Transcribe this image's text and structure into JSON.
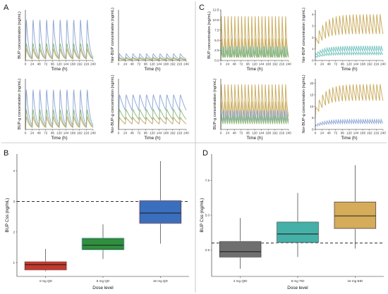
{
  "chart_data": [
    {
      "type": "line",
      "id": "A1",
      "panel_label": "A",
      "xlabel": "Time (h)",
      "ylabel": "BUP concentration (ng/mL)",
      "xticks": [
        "0",
        "24",
        "48",
        "72",
        "96",
        "120",
        "144",
        "168",
        "192",
        "216",
        "240"
      ],
      "xlim": [
        0,
        240
      ],
      "ylim": [
        0,
        10
      ],
      "period_h": 24,
      "series": [
        {
          "color": "#8ea6d4",
          "peak": 8.8,
          "trough": 0.6
        },
        {
          "color": "#8cb87a",
          "peak": 3.6,
          "trough": 0.4
        },
        {
          "color": "#b9a36a",
          "peak": 2.4,
          "trough": 0.3
        }
      ]
    },
    {
      "type": "line",
      "id": "A2",
      "xlabel": "Time (h)",
      "ylabel": "Nor-BUP concentration (ng/mL)",
      "xticks": [
        "0",
        "24",
        "48",
        "72",
        "96",
        "120",
        "144",
        "168",
        "192",
        "216",
        "240"
      ],
      "xlim": [
        0,
        240
      ],
      "ylim": [
        0,
        10
      ],
      "period_h": 24,
      "series": [
        {
          "color": "#8ea6d4",
          "peak": 1.4,
          "trough": 0.3
        },
        {
          "color": "#8cb87a",
          "peak": 0.7,
          "trough": 0.15
        },
        {
          "color": "#b9a36a",
          "peak": 0.4,
          "trough": 0.1
        }
      ]
    },
    {
      "type": "line",
      "id": "A3",
      "xlabel": "Time (h)",
      "ylabel": "BUP-g concentration (ng/mL)",
      "xticks": [
        "0",
        "24",
        "48",
        "72",
        "96",
        "120",
        "144",
        "168",
        "192",
        "216",
        "240"
      ],
      "xlim": [
        0,
        240
      ],
      "ylim": [
        0,
        10
      ],
      "period_h": 24,
      "series": [
        {
          "color": "#8ea6d4",
          "peak": 8.5,
          "trough": 0.8
        },
        {
          "color": "#8cb87a",
          "peak": 4.2,
          "trough": 0.5
        },
        {
          "color": "#b9a36a",
          "peak": 2.6,
          "trough": 0.4
        }
      ]
    },
    {
      "type": "line",
      "id": "A4",
      "xlabel": "Time (h)",
      "ylabel": "Nor-BUP-g concentration (ng/mL)",
      "xticks": [
        "0",
        "24",
        "48",
        "72",
        "96",
        "120",
        "144",
        "168",
        "192",
        "216",
        "240"
      ],
      "xlim": [
        0,
        240
      ],
      "ylim": [
        0,
        10
      ],
      "period_h": 24,
      "series": [
        {
          "color": "#8ea6d4",
          "peak": 7.0,
          "trough": 3.8
        },
        {
          "color": "#8cb87a",
          "peak": 4.0,
          "trough": 2.0
        },
        {
          "color": "#b9a36a",
          "peak": 2.4,
          "trough": 1.1
        }
      ]
    },
    {
      "type": "line",
      "id": "C1",
      "panel_label": "C",
      "xlabel": "Time (h)",
      "ylabel": "BUP concentration (ng/mL)",
      "xticks": [
        "0",
        "24",
        "48",
        "72",
        "96",
        "120",
        "144",
        "168",
        "192",
        "216",
        "240"
      ],
      "yticks": [
        "0.0",
        "2.5",
        "5.0",
        "7.5",
        "10.0",
        "12.5"
      ],
      "xlim": [
        0,
        240
      ],
      "ylim": [
        0,
        12.5
      ],
      "series": [
        {
          "color": "#c9ab5c",
          "peak": 11.8,
          "trough": 1.2,
          "period_h": 12
        },
        {
          "color": "#c9ab5c",
          "peak": 5.8,
          "trough": 0.8,
          "period_h": 12
        },
        {
          "color": "#75c4bf",
          "peak": 3.6,
          "trough": 0.9,
          "period_h": 8
        },
        {
          "color": "#8cb87a",
          "peak": 2.8,
          "trough": 0.7,
          "period_h": 8
        }
      ]
    },
    {
      "type": "line",
      "id": "C2",
      "xlabel": "Time (h)",
      "ylabel": "Nor-BUP concentration (ng/mL)",
      "xticks": [
        "0",
        "24",
        "48",
        "72",
        "96",
        "120",
        "144",
        "168",
        "192",
        "216",
        "240"
      ],
      "yticks": [
        "0",
        "1",
        "2",
        "3",
        "4"
      ],
      "xlim": [
        0,
        240
      ],
      "ylim": [
        0,
        4.4
      ],
      "series": [
        {
          "color": "#c9ab5c",
          "peak": 4.1,
          "trough": 2.3,
          "period_h": 12,
          "rise": true
        },
        {
          "color": "#75c4bf",
          "peak": 1.3,
          "trough": 0.8,
          "period_h": 8,
          "rise": true
        },
        {
          "color": "#75c4bf",
          "peak": 0.75,
          "trough": 0.5,
          "period_h": 8,
          "rise": true
        }
      ]
    },
    {
      "type": "line",
      "id": "C3",
      "xlabel": "Time (h)",
      "ylabel": "BUP-g concentration (ng/mL)",
      "xticks": [
        "0",
        "24",
        "48",
        "72",
        "96",
        "120",
        "144",
        "168",
        "192",
        "216",
        "240"
      ],
      "xlim": [
        0,
        240
      ],
      "ylim": [
        0,
        14
      ],
      "series": [
        {
          "color": "#c9ab5c",
          "peak": 13.0,
          "trough": 3.5,
          "period_h": 12
        },
        {
          "color": "#c9ab5c",
          "peak": 8.0,
          "trough": 2.5,
          "period_h": 12
        },
        {
          "color": "#8ea6d4",
          "peak": 5.5,
          "trough": 2.0,
          "period_h": 8
        },
        {
          "color": "#8cb87a",
          "peak": 4.0,
          "trough": 1.5,
          "period_h": 8
        }
      ]
    },
    {
      "type": "line",
      "id": "C4",
      "xlabel": "Time (h)",
      "ylabel": "Nor-BUP-g concentration (ng/mL)",
      "xticks": [
        "0",
        "24",
        "48",
        "72",
        "96",
        "120",
        "144",
        "168",
        "192",
        "216",
        "240"
      ],
      "yticks": [
        "0",
        "5",
        "10",
        "15",
        "20"
      ],
      "xlim": [
        0,
        240
      ],
      "ylim": [
        0,
        22
      ],
      "series": [
        {
          "color": "#c9ab5c",
          "peak": 20.0,
          "trough": 12.5,
          "period_h": 12,
          "rise": true
        },
        {
          "color": "#8ea6d4",
          "peak": 4.4,
          "trough": 2.6,
          "period_h": 8,
          "rise": true
        }
      ]
    },
    {
      "type": "box",
      "id": "B",
      "panel_label": "B",
      "xlabel": "Dose level",
      "ylabel": "BUP Css (ng/mL)",
      "yticks": [
        "1",
        "2",
        "3",
        "4"
      ],
      "ylim": [
        0.55,
        4.55
      ],
      "reference_line": 3,
      "boxes": [
        {
          "category": "4 mg QD",
          "min": 0.72,
          "q1": 0.77,
          "median": 0.93,
          "q3": 1.02,
          "max": 1.45,
          "fill": "#c9362a",
          "glow": "#f2a6a0"
        },
        {
          "category": "8 mg QD",
          "min": 1.12,
          "q1": 1.43,
          "median": 1.57,
          "q3": 1.79,
          "max": 2.25,
          "fill": "#2f8f3e",
          "glow": "#7fe7cf"
        },
        {
          "category": "16 mg QD",
          "min": 1.62,
          "q1": 2.29,
          "median": 2.62,
          "q3": 3.02,
          "max": 4.32,
          "fill": "#3a6fbe",
          "glow": "#f2b9df"
        }
      ]
    },
    {
      "type": "box",
      "id": "D",
      "panel_label": "D",
      "xlabel": "Dose level",
      "ylabel": "BUP Css (ng/mL)",
      "yticks": [
        "2.5",
        "5.0",
        "7.5"
      ],
      "ylim": [
        0.6,
        9.4
      ],
      "reference_line": 3,
      "boxes": [
        {
          "category": "4 mg QID",
          "min": 1.15,
          "q1": 2.0,
          "median": 2.38,
          "q3": 3.1,
          "max": 4.8,
          "fill": "#6f6f6f",
          "glow": "#cfcfcf"
        },
        {
          "category": "8 mg TID",
          "min": 2.0,
          "q1": 3.05,
          "median": 3.65,
          "q3": 4.5,
          "max": 6.6,
          "fill": "#45b0a8",
          "glow": "#bfe9e5"
        },
        {
          "category": "16 mg BID",
          "min": 2.6,
          "q1": 4.05,
          "median": 4.95,
          "q3": 5.95,
          "max": 8.6,
          "fill": "#d4ac5a",
          "glow": "#f3d6e8"
        }
      ]
    }
  ]
}
